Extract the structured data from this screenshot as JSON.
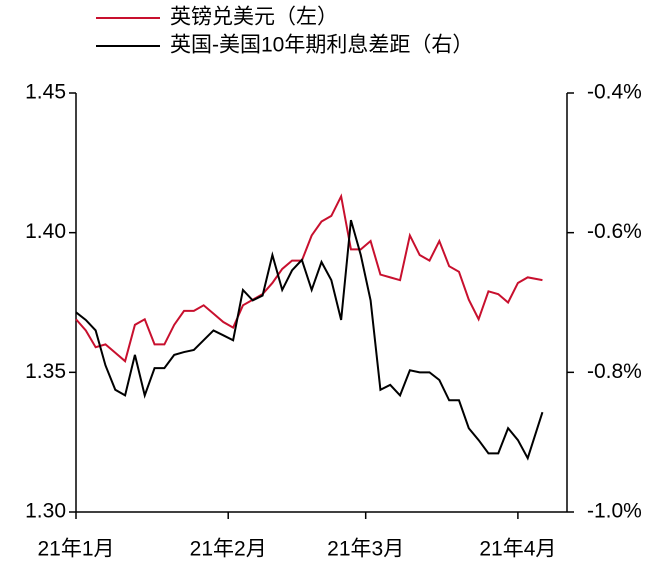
{
  "chart_data": {
    "type": "line",
    "x": [
      0,
      2,
      4,
      6,
      8,
      10,
      12,
      14,
      16,
      18,
      20,
      22,
      24,
      26,
      28,
      30,
      32,
      34,
      36,
      38,
      40,
      42,
      44,
      46,
      48,
      50,
      52,
      54,
      56,
      58,
      60,
      62,
      64,
      66,
      68,
      70,
      72,
      74,
      76,
      78,
      80,
      82,
      84,
      86,
      88,
      90,
      92,
      95
    ],
    "series": [
      {
        "name": "英镑兑美元（左）",
        "color": "#c8102e",
        "values": [
          1.369,
          1.365,
          1.359,
          1.36,
          1.357,
          1.354,
          1.367,
          1.369,
          1.36,
          1.36,
          1.367,
          1.372,
          1.372,
          1.374,
          1.371,
          1.368,
          1.366,
          1.374,
          1.376,
          1.378,
          1.382,
          1.387,
          1.39,
          1.39,
          1.399,
          1.404,
          1.406,
          1.413,
          1.394,
          1.394,
          1.397,
          1.385,
          1.384,
          1.383,
          1.399,
          1.392,
          1.39,
          1.397,
          1.388,
          1.386,
          1.376,
          1.369,
          1.379,
          1.378,
          1.375,
          1.382,
          1.384,
          1.383
        ]
      },
      {
        "name": "英国-美国10年期利息差距（右）",
        "color": "#000000",
        "axis": "y2",
        "values": [
          -0.714,
          -0.725,
          -0.74,
          -0.79,
          -0.825,
          -0.833,
          -0.775,
          -0.833,
          -0.794,
          -0.794,
          -0.775,
          -0.771,
          -0.768,
          -0.754,
          -0.74,
          -0.747,
          -0.754,
          -0.682,
          -0.697,
          -0.69,
          -0.632,
          -0.682,
          -0.654,
          -0.639,
          -0.682,
          -0.642,
          -0.668,
          -0.725,
          -0.582,
          -0.632,
          -0.697,
          -0.825,
          -0.818,
          -0.833,
          -0.797,
          -0.8,
          -0.8,
          -0.811,
          -0.84,
          -0.84,
          -0.88,
          -0.897,
          -0.916,
          -0.916,
          -0.88,
          -0.897,
          -0.923,
          -0.857
        ]
      }
    ],
    "xlim": [
      0,
      100
    ],
    "xticks": [
      {
        "value": 0,
        "label": "21年1月"
      },
      {
        "value": 31,
        "label": "21年2月"
      },
      {
        "value": 59,
        "label": "21年3月"
      },
      {
        "value": 90,
        "label": "21年4月"
      }
    ],
    "ylim": [
      1.3,
      1.45
    ],
    "yticks": [
      {
        "value": 1.3,
        "label": "1.30"
      },
      1.35,
      {
        "value": 1.4,
        "label": "1.40"
      },
      1.45
    ],
    "y2lim": [
      -1.0,
      -0.4
    ],
    "y2ticks": [
      {
        "value": -1.0,
        "label": "-1.0%"
      },
      {
        "value": -0.8,
        "label": "-0.8%"
      },
      {
        "value": -0.6,
        "label": "-0.6%"
      },
      {
        "value": -0.4,
        "label": "-0.4%"
      }
    ]
  }
}
